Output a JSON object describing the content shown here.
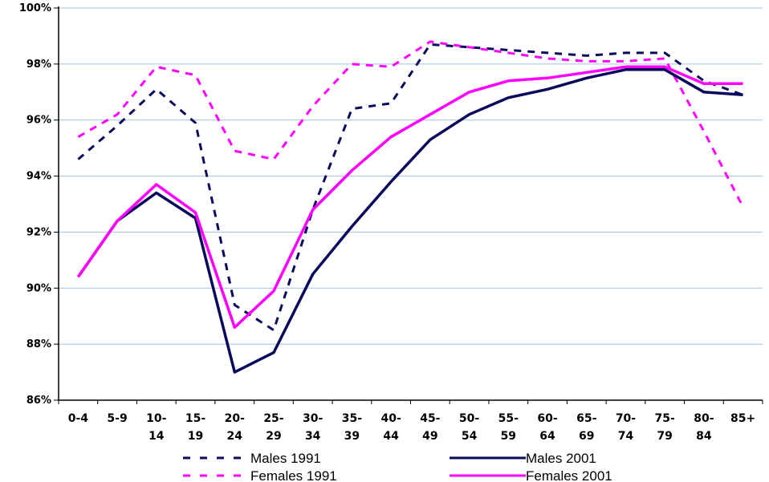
{
  "chart_data": {
    "type": "line",
    "title": "",
    "xlabel": "",
    "ylabel": "",
    "categories": [
      [
        "0-4",
        ""
      ],
      [
        "5-9",
        ""
      ],
      [
        "10-",
        "14"
      ],
      [
        "15-",
        "19"
      ],
      [
        "20-",
        "24"
      ],
      [
        "25-",
        "29"
      ],
      [
        "30-",
        "34"
      ],
      [
        "35-",
        "39"
      ],
      [
        "40-",
        "44"
      ],
      [
        "45-",
        "49"
      ],
      [
        "50-",
        "54"
      ],
      [
        "55-",
        "59"
      ],
      [
        "60-",
        "64"
      ],
      [
        "65-",
        "69"
      ],
      [
        "70-",
        "74"
      ],
      [
        "75-",
        "79"
      ],
      [
        "80-",
        "84"
      ],
      [
        "85+",
        ""
      ]
    ],
    "ylim": [
      86,
      100
    ],
    "yticks": [
      86,
      88,
      90,
      92,
      94,
      96,
      98,
      100
    ],
    "ytick_labels": [
      "86%",
      "88%",
      "90%",
      "92%",
      "94%",
      "96%",
      "98%",
      "100%"
    ],
    "grid": true,
    "legend_position": "bottom",
    "series": [
      {
        "name": "Males 1991",
        "color": "#0a0a5c",
        "style": "dashed",
        "values": [
          94.6,
          95.8,
          97.1,
          95.9,
          89.4,
          88.5,
          92.8,
          96.4,
          96.6,
          98.7,
          98.6,
          98.5,
          98.4,
          98.3,
          98.4,
          98.4,
          97.4,
          96.9
        ]
      },
      {
        "name": "Males 2001",
        "color": "#0a0a5c",
        "style": "solid",
        "values": [
          90.4,
          92.4,
          93.4,
          92.5,
          87.0,
          87.7,
          90.5,
          92.2,
          93.8,
          95.3,
          96.2,
          96.8,
          97.1,
          97.5,
          97.8,
          97.8,
          97.0,
          96.9
        ]
      },
      {
        "name": "Females 1991",
        "color": "#ff00ff",
        "style": "dashed",
        "values": [
          95.4,
          96.2,
          97.9,
          97.6,
          94.9,
          94.6,
          96.5,
          98.0,
          97.9,
          98.8,
          98.6,
          98.4,
          98.2,
          98.1,
          98.1,
          98.2,
          95.6,
          92.9
        ]
      },
      {
        "name": "Females 2001",
        "color": "#ff00ff",
        "style": "solid",
        "values": [
          90.4,
          92.4,
          93.7,
          92.7,
          88.6,
          89.9,
          92.8,
          94.2,
          95.4,
          96.2,
          97.0,
          97.4,
          97.5,
          97.7,
          97.9,
          97.9,
          97.3,
          97.3
        ]
      }
    ]
  }
}
